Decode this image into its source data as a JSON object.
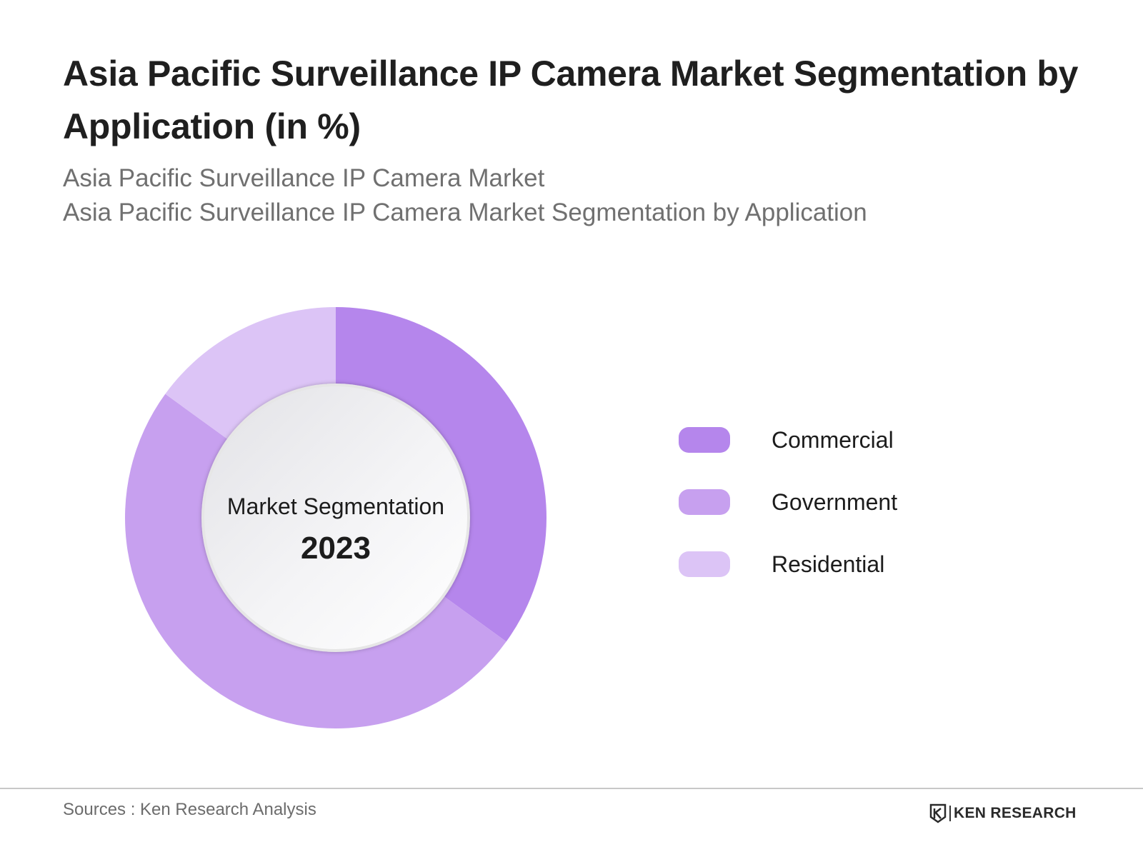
{
  "header": {
    "title": "Asia Pacific Surveillance IP Camera Market Segmentation by Application (in %)",
    "subtitle_1": "Asia Pacific Surveillance IP Camera Market",
    "subtitle_2": "Asia Pacific Surveillance IP Camera Market Segmentation by Application"
  },
  "chart_data": {
    "type": "pie",
    "variant": "donut",
    "center_label": "Market Segmentation",
    "center_year": "2023",
    "categories": [
      "Commercial",
      "Government",
      "Residential"
    ],
    "values": [
      35,
      50,
      15
    ],
    "unit": "%",
    "colors": [
      "#b586ec",
      "#c7a0ef",
      "#dcc4f6"
    ],
    "legend_position": "right"
  },
  "footer": {
    "sources": "Sources : Ken Research Analysis",
    "logo_text": "KEN RESEARCH"
  }
}
